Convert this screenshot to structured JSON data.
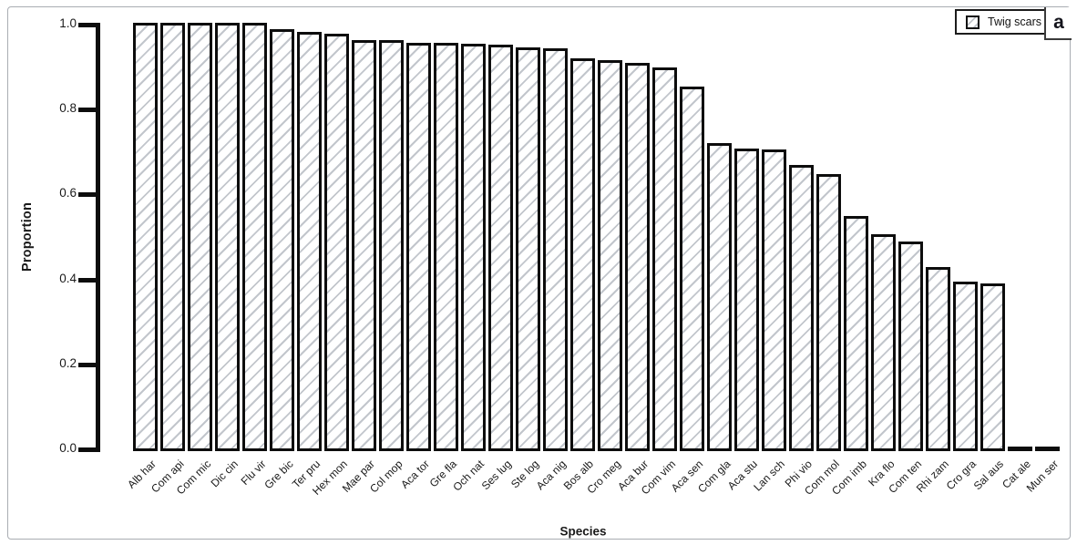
{
  "figure": {
    "panel_label": "a",
    "legend": {
      "label": "Twig scars",
      "swatch_icon": "diagonal-hatch-swatch-icon"
    }
  },
  "chart_data": {
    "type": "bar",
    "title": "",
    "xlabel": "Species",
    "ylabel": "Proportion",
    "ylim": [
      0.0,
      1.0
    ],
    "yticks": [
      0.0,
      0.2,
      0.4,
      0.6,
      0.8,
      1.0
    ],
    "grid": false,
    "legend_position": "top-right",
    "series_name": "Twig scars",
    "bar_style": {
      "fill": "#ffffff",
      "hatch_pattern": "/",
      "hatch_color": "#c2c6cc",
      "border_color": "#0d0d0d",
      "axis_color": "#0d0d0d"
    },
    "categories": [
      "Alb har",
      "Com api",
      "Com mic",
      "Dic cin",
      "Flu vir",
      "Gre bic",
      "Ter pru",
      "Hex mon",
      "Mae par",
      "Col mop",
      "Aca tor",
      "Gre fla",
      "Och nat",
      "Ses lug",
      "Ste log",
      "Aca nig",
      "Bos alb",
      "Cro meg",
      "Aca bur",
      "Com vim",
      "Aca sen",
      "Com gla",
      "Aca stu",
      "Lan sch",
      "Phi vio",
      "Com mol",
      "Com imb",
      "Kra flo",
      "Com ten",
      "Rhi zam",
      "Cro gra",
      "Sal aus",
      "Cat ale",
      "Mun ser"
    ],
    "values": [
      1.0,
      1.0,
      1.0,
      1.0,
      1.0,
      0.985,
      0.978,
      0.974,
      0.96,
      0.96,
      0.953,
      0.953,
      0.95,
      0.948,
      0.942,
      0.94,
      0.916,
      0.912,
      0.905,
      0.894,
      0.849,
      0.716,
      0.703,
      0.702,
      0.666,
      0.643,
      0.544,
      0.502,
      0.486,
      0.424,
      0.39,
      0.386,
      0.0,
      0.0
    ]
  }
}
